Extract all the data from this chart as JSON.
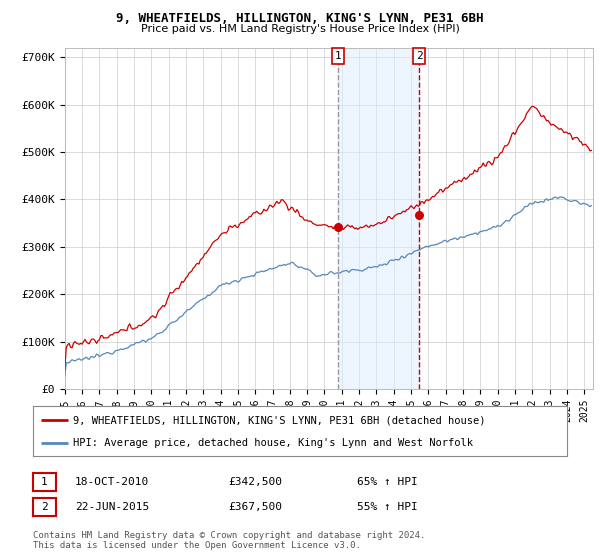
{
  "title": "9, WHEATFIELDS, HILLINGTON, KING'S LYNN, PE31 6BH",
  "subtitle": "Price paid vs. HM Land Registry's House Price Index (HPI)",
  "ylabel_ticks": [
    "£0",
    "£100K",
    "£200K",
    "£300K",
    "£400K",
    "£500K",
    "£600K",
    "£700K"
  ],
  "ytick_values": [
    0,
    100000,
    200000,
    300000,
    400000,
    500000,
    600000,
    700000
  ],
  "ylim": [
    0,
    720000
  ],
  "xlim_start": 1995.0,
  "xlim_end": 2025.5,
  "red_line_color": "#cc0000",
  "blue_line_color": "#5588bb",
  "vline1_color": "#999999",
  "vline1_style": "dashed",
  "vline2_color": "#cc0000",
  "vline2_style": "dashed",
  "shade_color": "#ddeeff",
  "shade_alpha": 0.5,
  "purchase1_x": 2010.79,
  "purchase1_y": 342500,
  "purchase1_label": "1",
  "purchase2_x": 2015.47,
  "purchase2_y": 367500,
  "purchase2_label": "2",
  "legend_red_label": "9, WHEATFIELDS, HILLINGTON, KING'S LYNN, PE31 6BH (detached house)",
  "legend_blue_label": "HPI: Average price, detached house, King's Lynn and West Norfolk",
  "footer": "Contains HM Land Registry data © Crown copyright and database right 2024.\nThis data is licensed under the Open Government Licence v3.0.",
  "background_color": "#ffffff",
  "grid_color": "#cccccc",
  "xtick_years": [
    1995,
    1996,
    1997,
    1998,
    1999,
    2000,
    2001,
    2002,
    2003,
    2004,
    2005,
    2006,
    2007,
    2008,
    2009,
    2010,
    2011,
    2012,
    2013,
    2014,
    2015,
    2016,
    2017,
    2018,
    2019,
    2020,
    2021,
    2022,
    2023,
    2024,
    2025
  ]
}
